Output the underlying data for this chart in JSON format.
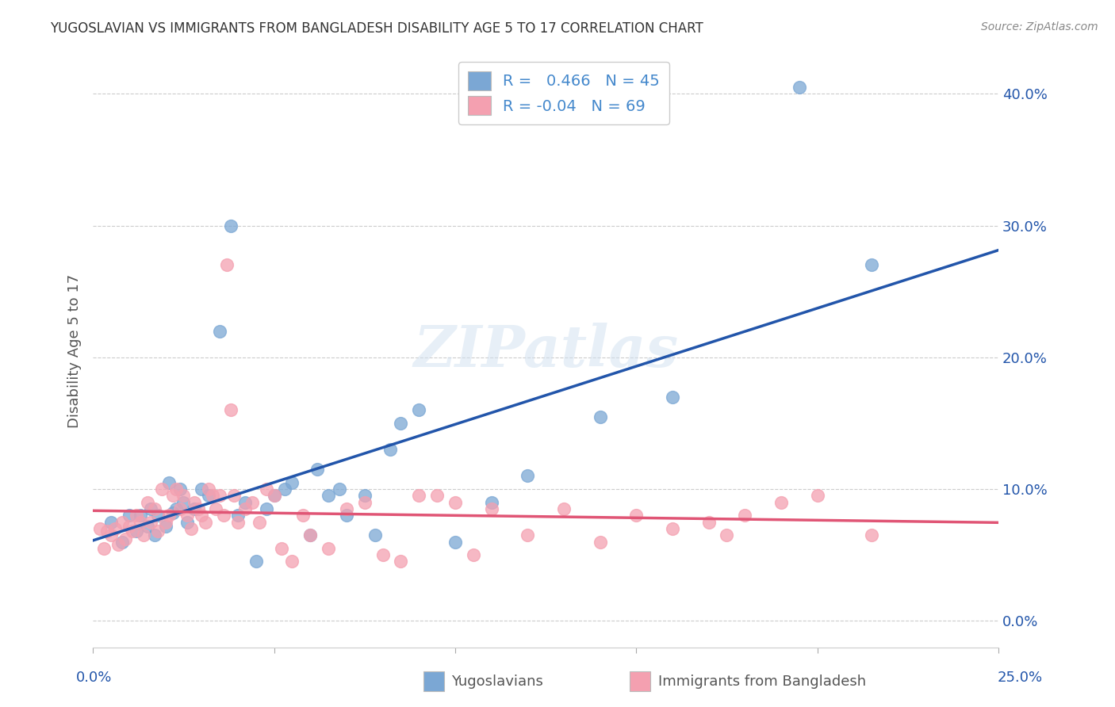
{
  "title": "YUGOSLAVIAN VS IMMIGRANTS FROM BANGLADESH DISABILITY AGE 5 TO 17 CORRELATION CHART",
  "source": "Source: ZipAtlas.com",
  "ylabel": "Disability Age 5 to 17",
  "right_ytick_vals": [
    0.0,
    0.1,
    0.2,
    0.3,
    0.4
  ],
  "xlim": [
    0.0,
    0.25
  ],
  "ylim": [
    -0.02,
    0.43
  ],
  "blue_R": 0.466,
  "blue_N": 45,
  "pink_R": -0.04,
  "pink_N": 69,
  "blue_color": "#7ba7d4",
  "pink_color": "#f4a0b0",
  "blue_line_color": "#2255aa",
  "pink_line_color": "#e05575",
  "legend_text_color": "#4488cc",
  "blue_points_x": [
    0.005,
    0.008,
    0.01,
    0.012,
    0.013,
    0.015,
    0.016,
    0.017,
    0.018,
    0.02,
    0.021,
    0.022,
    0.023,
    0.024,
    0.025,
    0.026,
    0.028,
    0.03,
    0.032,
    0.035,
    0.038,
    0.04,
    0.042,
    0.045,
    0.048,
    0.05,
    0.053,
    0.055,
    0.06,
    0.062,
    0.065,
    0.068,
    0.07,
    0.075,
    0.078,
    0.082,
    0.085,
    0.09,
    0.1,
    0.11,
    0.12,
    0.14,
    0.16,
    0.195,
    0.215
  ],
  "blue_points_y": [
    0.075,
    0.06,
    0.08,
    0.068,
    0.08,
    0.072,
    0.085,
    0.065,
    0.08,
    0.072,
    0.105,
    0.082,
    0.085,
    0.1,
    0.09,
    0.075,
    0.085,
    0.1,
    0.095,
    0.22,
    0.3,
    0.08,
    0.09,
    0.045,
    0.085,
    0.095,
    0.1,
    0.105,
    0.065,
    0.115,
    0.095,
    0.1,
    0.08,
    0.095,
    0.065,
    0.13,
    0.15,
    0.16,
    0.06,
    0.09,
    0.11,
    0.155,
    0.17,
    0.405,
    0.27
  ],
  "pink_points_x": [
    0.002,
    0.003,
    0.004,
    0.005,
    0.006,
    0.007,
    0.008,
    0.009,
    0.01,
    0.011,
    0.012,
    0.013,
    0.014,
    0.015,
    0.016,
    0.017,
    0.018,
    0.019,
    0.02,
    0.021,
    0.022,
    0.023,
    0.024,
    0.025,
    0.026,
    0.027,
    0.028,
    0.029,
    0.03,
    0.031,
    0.032,
    0.033,
    0.034,
    0.035,
    0.036,
    0.037,
    0.038,
    0.039,
    0.04,
    0.042,
    0.044,
    0.046,
    0.048,
    0.05,
    0.052,
    0.055,
    0.058,
    0.06,
    0.065,
    0.07,
    0.075,
    0.08,
    0.085,
    0.09,
    0.095,
    0.1,
    0.105,
    0.11,
    0.12,
    0.13,
    0.14,
    0.15,
    0.16,
    0.17,
    0.175,
    0.18,
    0.19,
    0.2,
    0.215
  ],
  "pink_points_y": [
    0.07,
    0.055,
    0.068,
    0.065,
    0.07,
    0.058,
    0.075,
    0.062,
    0.072,
    0.068,
    0.08,
    0.075,
    0.065,
    0.09,
    0.075,
    0.085,
    0.068,
    0.1,
    0.075,
    0.08,
    0.095,
    0.1,
    0.085,
    0.095,
    0.08,
    0.07,
    0.09,
    0.085,
    0.08,
    0.075,
    0.1,
    0.095,
    0.085,
    0.095,
    0.08,
    0.27,
    0.16,
    0.095,
    0.075,
    0.085,
    0.09,
    0.075,
    0.1,
    0.095,
    0.055,
    0.045,
    0.08,
    0.065,
    0.055,
    0.085,
    0.09,
    0.05,
    0.045,
    0.095,
    0.095,
    0.09,
    0.05,
    0.085,
    0.065,
    0.085,
    0.06,
    0.08,
    0.07,
    0.075,
    0.065,
    0.08,
    0.09,
    0.095,
    0.065
  ]
}
